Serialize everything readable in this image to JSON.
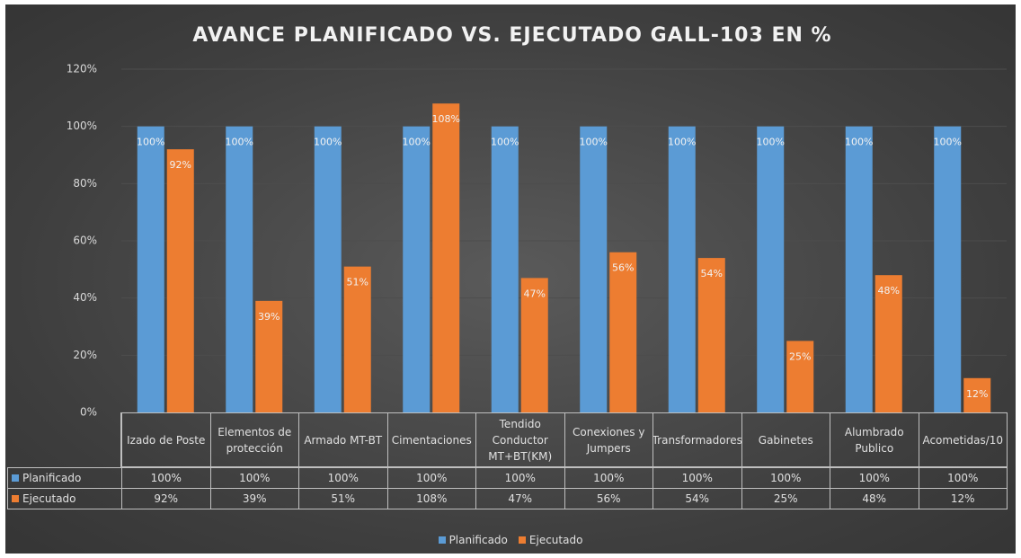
{
  "chart_data": {
    "type": "bar",
    "title": "AVANCE PLANIFICADO VS. EJECUTADO GALL-103 EN %",
    "categories": [
      "Izado de Poste",
      "Elementos de protección",
      "Armado MT-BT",
      "Cimentaciones",
      "Tendido Conductor MT+BT(KM)",
      "Conexiones y Jumpers",
      "Transformadores",
      "Gabinetes",
      "Alumbrado Publico",
      "Acometidas/10"
    ],
    "series": [
      {
        "name": "Planificado",
        "color": "#5b9bd5",
        "values": [
          100,
          100,
          100,
          100,
          100,
          100,
          100,
          100,
          100,
          100
        ],
        "value_labels": [
          "100%",
          "100%",
          "100%",
          "100%",
          "100%",
          "100%",
          "100%",
          "100%",
          "100%",
          "100%"
        ]
      },
      {
        "name": "Ejecutado",
        "color": "#ed7d31",
        "values": [
          92,
          39,
          51,
          108,
          47,
          56,
          54,
          25,
          48,
          12
        ],
        "value_labels": [
          "92%",
          "39%",
          "51%",
          "108%",
          "47%",
          "56%",
          "54%",
          "25%",
          "48%",
          "12%"
        ]
      }
    ],
    "ylim": [
      0,
      120
    ],
    "yticks": [
      {
        "value": 0,
        "label": "0%"
      },
      {
        "value": 20,
        "label": "20%"
      },
      {
        "value": 40,
        "label": "40%"
      },
      {
        "value": 60,
        "label": "60%"
      },
      {
        "value": 80,
        "label": "80%"
      },
      {
        "value": 100,
        "label": "100%"
      },
      {
        "value": 120,
        "label": "120%"
      }
    ],
    "grid": true,
    "legend": "bottom"
  }
}
